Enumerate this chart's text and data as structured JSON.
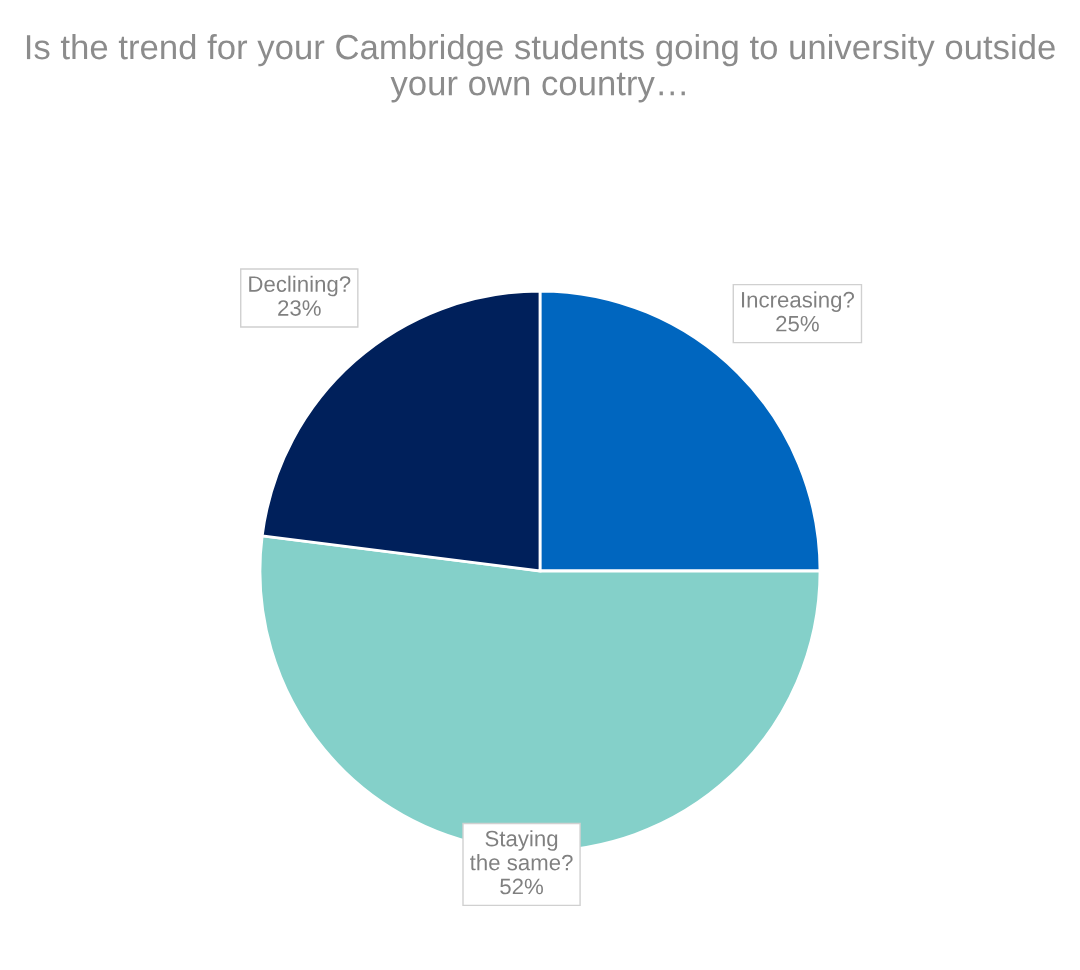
{
  "chart_data": {
    "type": "pie",
    "title": "Is the trend for your Cambridge students going to university outside your own country…",
    "categories": [
      "Increasing?",
      "Staying the same?",
      "Declining?"
    ],
    "values": [
      25,
      52,
      23
    ],
    "colors": [
      "#0066bf",
      "#84d0c9",
      "#00205b"
    ],
    "value_labels": [
      "25%",
      "52%",
      "23%"
    ],
    "legend": false
  }
}
